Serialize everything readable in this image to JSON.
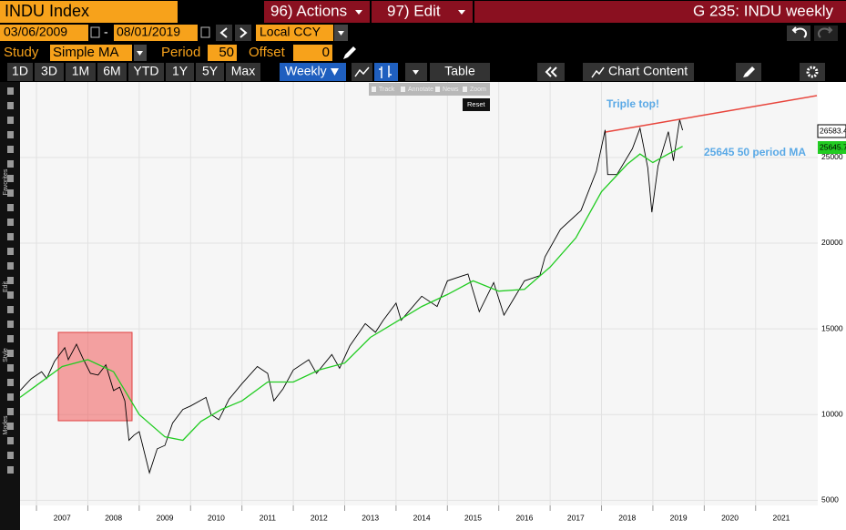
{
  "header": {
    "ticker": "INDU Index",
    "actions": "96) Actions",
    "edit": "97) Edit",
    "page": "G 235: INDU weekly"
  },
  "date_range": {
    "start": "03/06/2009",
    "separator": "-",
    "end": "08/01/2019",
    "currency": "Local CCY"
  },
  "study": {
    "label": "Study",
    "type": "Simple MA",
    "period_label": "Period",
    "period": "50",
    "offset_label": "Offset",
    "offset": "0"
  },
  "toolbar": {
    "ranges": [
      "1D",
      "3D",
      "1M",
      "6M",
      "YTD",
      "1Y",
      "5Y",
      "Max"
    ],
    "frequency": "Weekly",
    "table": "Table",
    "chart_content": "Chart Content"
  },
  "popup": {
    "items": [
      "Track",
      "Annotate",
      "News",
      "Zoom"
    ],
    "reset": "Reset"
  },
  "side_labels": [
    "Favorites",
    "Edit",
    "Style",
    "Modes"
  ],
  "chart_data": {
    "type": "line",
    "annotations": [
      "Triple top!",
      "25645 50 period MA"
    ],
    "price_tags": [
      "26583.42",
      "25645.72"
    ],
    "xlim": [
      2006.68,
      2022.21
    ],
    "xticks": [
      2007,
      2008,
      2009,
      2010,
      2011,
      2012,
      2013,
      2014,
      2015,
      2016,
      2017,
      2018,
      2019,
      2020,
      2021
    ],
    "ylim": [
      4700,
      29400
    ],
    "yticks": [
      5000,
      10000,
      15000,
      20000,
      25000
    ],
    "grid": true,
    "series": [
      {
        "color": "#000000",
        "x": [
          2006.68,
          2006.9,
          2007.1,
          2007.2,
          2007.35,
          2007.55,
          2007.62,
          2007.78,
          2007.9,
          2008.05,
          2008.2,
          2008.35,
          2008.5,
          2008.62,
          2008.72,
          2008.8,
          2008.9,
          2009.0,
          2009.15,
          2009.2,
          2009.35,
          2009.5,
          2009.65,
          2009.85,
          2010.0,
          2010.3,
          2010.4,
          2010.55,
          2010.75,
          2011.0,
          2011.3,
          2011.5,
          2011.62,
          2011.8,
          2012.0,
          2012.3,
          2012.45,
          2012.75,
          2012.9,
          2013.1,
          2013.4,
          2013.6,
          2013.75,
          2014.0,
          2014.1,
          2014.5,
          2014.8,
          2015.0,
          2015.4,
          2015.62,
          2015.9,
          2016.1,
          2016.5,
          2016.8,
          2016.9,
          2017.2,
          2017.6,
          2017.9,
          2018.07,
          2018.12,
          2018.3,
          2018.6,
          2018.75,
          2018.9,
          2018.98,
          2019.1,
          2019.3,
          2019.4,
          2019.52,
          2019.58
        ],
        "values": [
          11400,
          12100,
          12500,
          12100,
          13100,
          13900,
          13200,
          14100,
          13300,
          12400,
          12300,
          12900,
          11400,
          11600,
          10800,
          8500,
          8800,
          9000,
          7200,
          6600,
          8000,
          8200,
          9500,
          10300,
          10500,
          11000,
          10000,
          9700,
          10900,
          11800,
          12800,
          12400,
          10800,
          11500,
          12600,
          13200,
          12400,
          13500,
          12700,
          14000,
          15300,
          14800,
          15500,
          16500,
          15500,
          16900,
          16300,
          17800,
          18200,
          16000,
          17700,
          15800,
          17800,
          18100,
          19200,
          20800,
          21900,
          24200,
          26600,
          24000,
          24000,
          25500,
          26700,
          24400,
          21800,
          24500,
          26500,
          24800,
          27200,
          26583.42
        ]
      },
      {
        "color": "#22cc22",
        "x": [
          2006.68,
          2007.0,
          2007.5,
          2008.0,
          2008.5,
          2009.0,
          2009.5,
          2009.85,
          2010.2,
          2010.6,
          2011.0,
          2011.5,
          2012.0,
          2012.5,
          2013.0,
          2013.5,
          2014.0,
          2014.5,
          2015.0,
          2015.5,
          2016.0,
          2016.5,
          2017.0,
          2017.5,
          2018.0,
          2018.5,
          2018.75,
          2019.0,
          2019.3,
          2019.58
        ],
        "values": [
          11000,
          11700,
          12800,
          13200,
          12500,
          10000,
          8700,
          8500,
          9600,
          10300,
          10800,
          11900,
          11900,
          12600,
          13000,
          14500,
          15400,
          16300,
          17000,
          17800,
          17200,
          17300,
          18600,
          20300,
          23000,
          24600,
          25200,
          24700,
          25200,
          25645.72
        ]
      }
    ]
  }
}
